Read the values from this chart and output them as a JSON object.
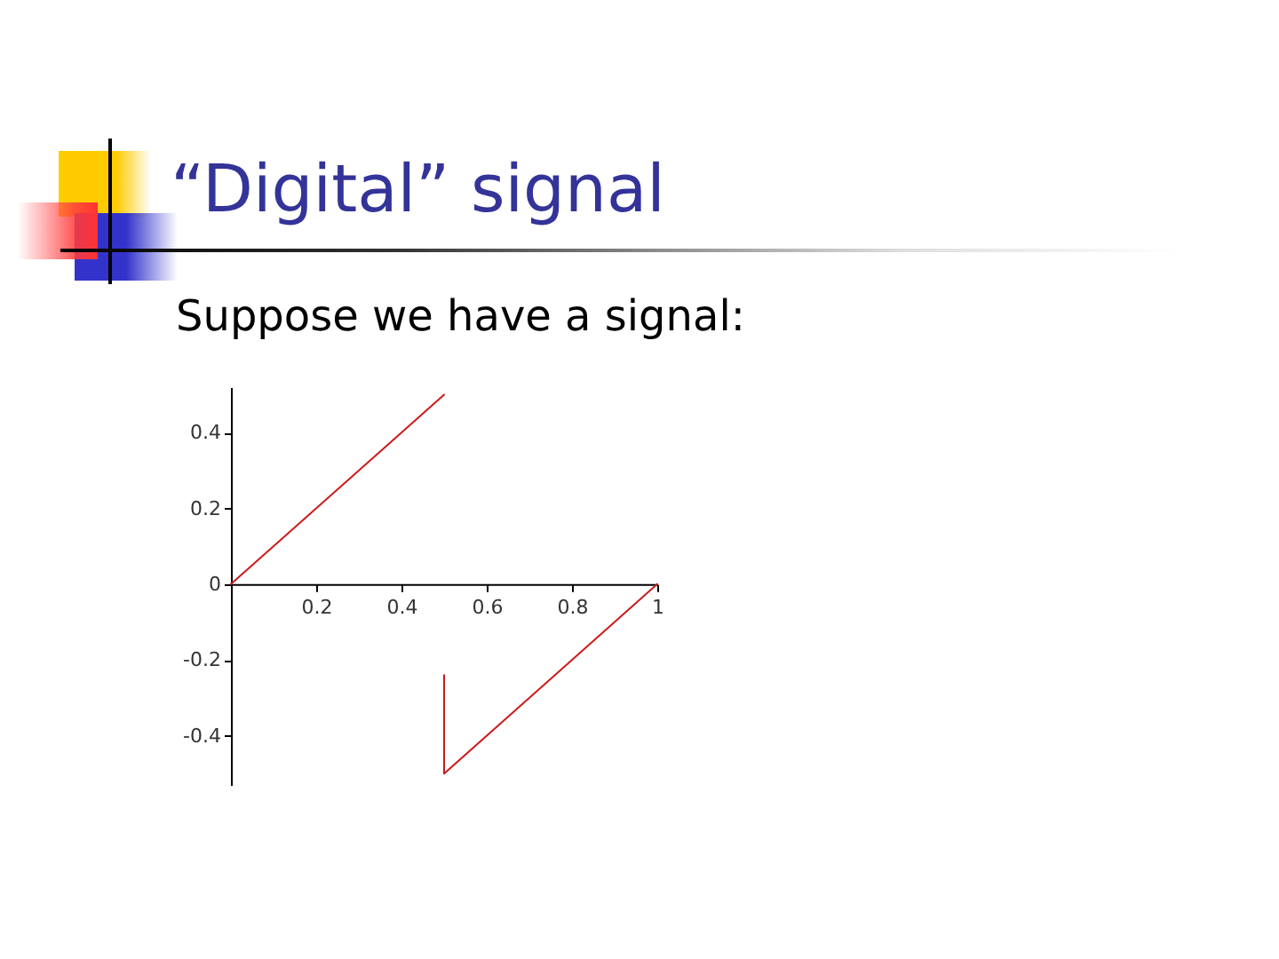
{
  "chart_data": {
    "type": "line",
    "title": "“Digital” signal",
    "subtitle": "Suppose we have a signal:",
    "series": [
      {
        "color": "#cc1a1a",
        "x": [
          0,
          0.5
        ],
        "values": [
          0,
          0.5
        ]
      },
      {
        "color": "#cc1a1a",
        "x": [
          0.5,
          0.5,
          1
        ],
        "values": [
          -0.24,
          -0.5,
          0
        ]
      }
    ],
    "xlim": [
      0,
      1
    ],
    "ylim": [
      -0.53,
      0.52
    ],
    "xticks": [
      0.2,
      0.4,
      0.6,
      0.8,
      1
    ],
    "yticks": [
      -0.4,
      -0.2,
      0,
      0.2,
      0.4
    ],
    "grid": false,
    "marker": "none",
    "line_style": "solid"
  }
}
